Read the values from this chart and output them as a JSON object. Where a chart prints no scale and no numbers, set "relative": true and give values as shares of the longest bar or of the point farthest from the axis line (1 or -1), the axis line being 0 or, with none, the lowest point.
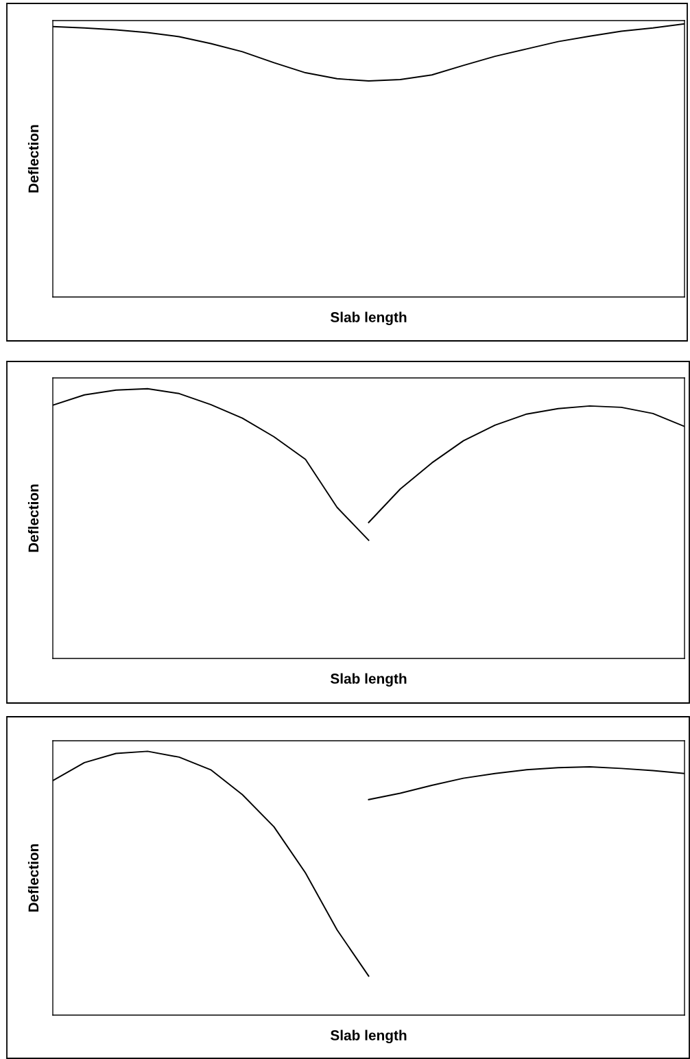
{
  "chart_data": [
    {
      "type": "line",
      "relative": true,
      "xlabel": "Slab length",
      "ylabel": "Deflection",
      "categories": [
        null,
        null,
        null,
        null,
        null,
        null,
        null,
        null,
        null,
        null,
        null,
        null,
        null,
        null,
        null,
        null,
        null,
        null,
        null,
        null,
        null
      ],
      "series": [
        {
          "color": "#000000",
          "values": [
            0.99,
            0.985,
            0.978,
            0.968,
            0.953,
            0.928,
            0.898,
            0.858,
            0.821,
            0.799,
            0.791,
            0.796,
            0.813,
            0.848,
            0.881,
            0.908,
            0.935,
            0.955,
            0.973,
            0.985,
            1
          ]
        }
      ]
    },
    {
      "type": "line",
      "relative": true,
      "xlabel": "Slab length",
      "ylabel": "Deflection",
      "categories": [
        null,
        null,
        null,
        null,
        null,
        null,
        null,
        null,
        null,
        null,
        null,
        null,
        null,
        null,
        null,
        null,
        null,
        null,
        null,
        null,
        null
      ],
      "series": [
        {
          "color": "#000000",
          "values": [
            0.939,
            0.977,
            0.995,
            1,
            0.982,
            0.941,
            0.891,
            0.822,
            0.738,
            0.56,
            0.438,
            null,
            null,
            null,
            null,
            null,
            null,
            null,
            null,
            null,
            null
          ]
        },
        {
          "color": "#000000",
          "values": [
            null,
            null,
            null,
            null,
            null,
            null,
            null,
            null,
            null,
            null,
            0.504,
            0.628,
            0.725,
            0.807,
            0.865,
            0.906,
            0.926,
            0.936,
            0.931,
            0.908,
            0.86
          ]
        }
      ]
    },
    {
      "type": "line",
      "relative": true,
      "xlabel": "Slab length",
      "ylabel": "Deflection",
      "categories": [
        null,
        null,
        null,
        null,
        null,
        null,
        null,
        null,
        null,
        null,
        null,
        null,
        null,
        null,
        null,
        null,
        null,
        null,
        null,
        null,
        null
      ],
      "series": [
        {
          "color": "#000000",
          "values": [
            0.889,
            0.957,
            0.992,
            1,
            0.978,
            0.93,
            0.836,
            0.714,
            0.539,
            0.323,
            0.148,
            null,
            null,
            null,
            null,
            null,
            null,
            null,
            null,
            null,
            null
          ]
        },
        {
          "color": "#000000",
          "values": [
            null,
            null,
            null,
            null,
            null,
            null,
            null,
            null,
            null,
            null,
            0.817,
            0.841,
            0.871,
            0.898,
            0.916,
            0.93,
            0.938,
            0.941,
            0.935,
            0.927,
            0.916
          ]
        }
      ]
    }
  ]
}
